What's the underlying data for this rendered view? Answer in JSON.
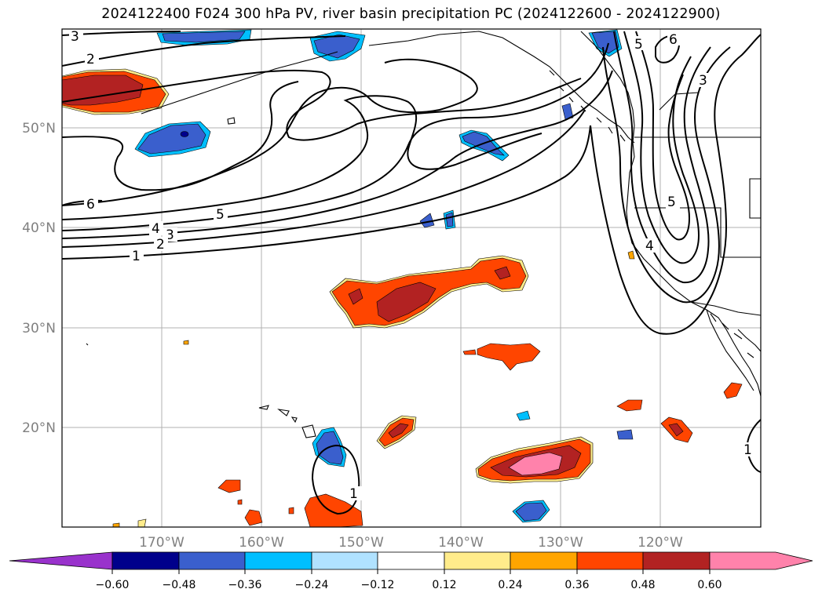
{
  "title": "2024122400 F024 300 hPa PV, river basin precipitation PC (2024122600 - 2024122900)",
  "map": {
    "lon_labels": [
      "170°W",
      "160°W",
      "150°W",
      "140°W",
      "130°W",
      "120°W"
    ],
    "lat_labels": [
      "50°N",
      "40°N",
      "30°N",
      "20°N"
    ],
    "contour_labels": [
      "3",
      "2",
      "6",
      "5",
      "4",
      "3",
      "2",
      "1",
      "6",
      "5",
      "5",
      "4",
      "3",
      "1",
      "1"
    ],
    "grid": true
  },
  "colorbar": {
    "ticks": [
      "−0.60",
      "−0.48",
      "−0.36",
      "−0.24",
      "−0.12",
      "0.12",
      "0.24",
      "0.36",
      "0.48",
      "0.60"
    ],
    "colors": [
      "#9932CC",
      "#00008B",
      "#3A5FCD",
      "#00BFFF",
      "#B0E2FF",
      "#FFFFFF",
      "#FFEC8B",
      "#FFA500",
      "#FF4500",
      "#B22222",
      "#FF82AB"
    ],
    "extend": "both"
  }
}
